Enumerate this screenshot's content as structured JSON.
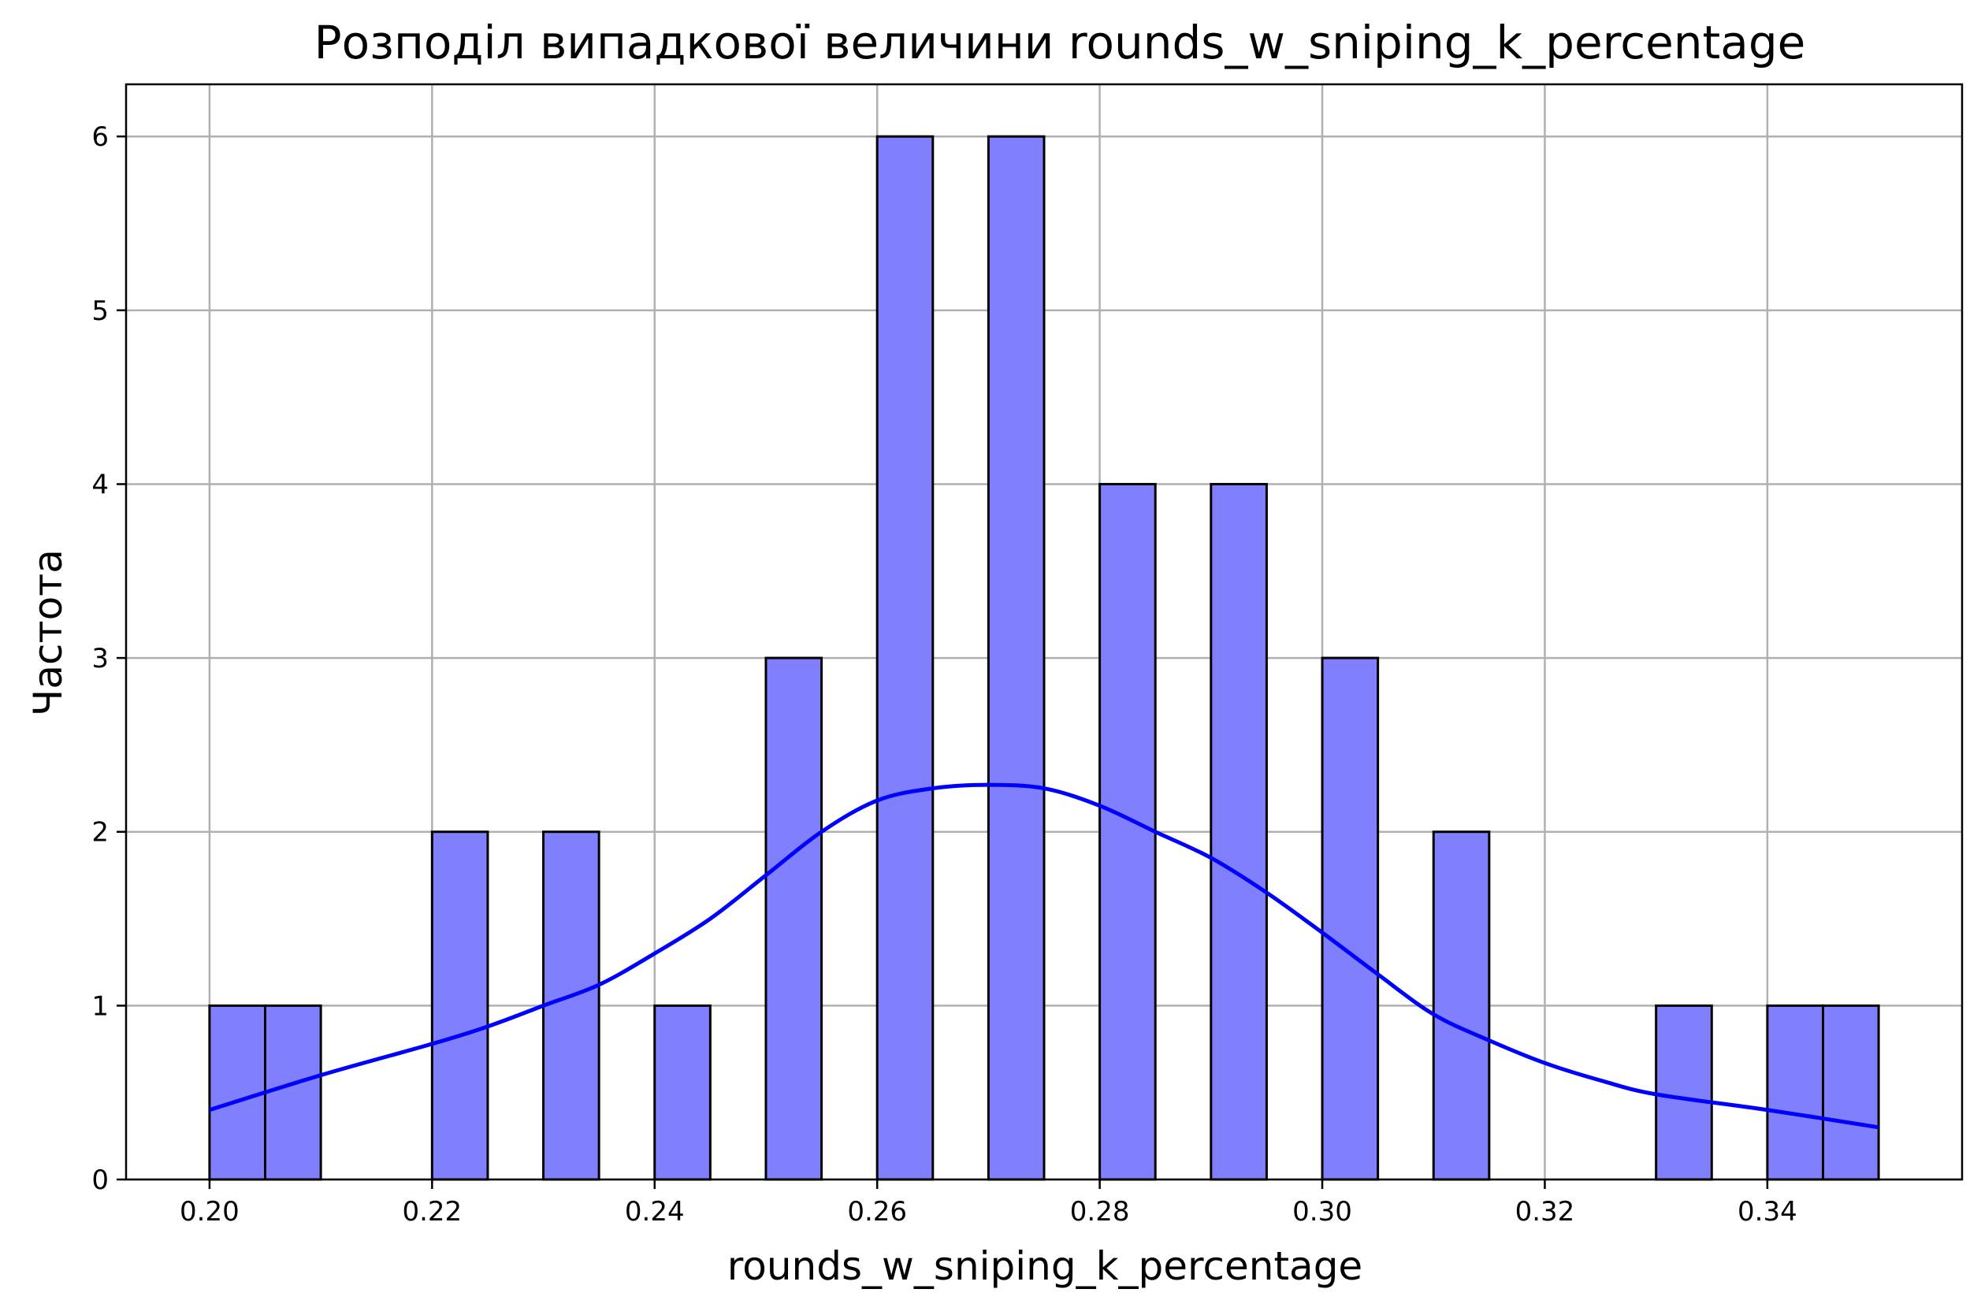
{
  "chart_data": {
    "type": "bar",
    "title": "Розподіл випадкової величини rounds_w_sniping_k_percentage",
    "xlabel": "rounds_w_sniping_k_percentage",
    "ylabel": "Частота",
    "xlim": [
      0.1925,
      0.3575
    ],
    "ylim": [
      0,
      6.3
    ],
    "xticks": [
      "0.20",
      "0.22",
      "0.24",
      "0.26",
      "0.28",
      "0.30",
      "0.32",
      "0.34"
    ],
    "yticks": [
      "0",
      "1",
      "2",
      "3",
      "4",
      "5",
      "6"
    ],
    "grid": true,
    "bin_width": 0.005,
    "bins": [
      {
        "x": 0.2,
        "value": 1
      },
      {
        "x": 0.205,
        "value": 1
      },
      {
        "x": 0.22,
        "value": 2
      },
      {
        "x": 0.23,
        "value": 2
      },
      {
        "x": 0.24,
        "value": 1
      },
      {
        "x": 0.25,
        "value": 3
      },
      {
        "x": 0.26,
        "value": 6
      },
      {
        "x": 0.27,
        "value": 6
      },
      {
        "x": 0.28,
        "value": 4
      },
      {
        "x": 0.29,
        "value": 4
      },
      {
        "x": 0.3,
        "value": 3
      },
      {
        "x": 0.31,
        "value": 2
      },
      {
        "x": 0.33,
        "value": 1
      },
      {
        "x": 0.34,
        "value": 1
      },
      {
        "x": 0.345,
        "value": 1
      }
    ],
    "kde": {
      "x": [
        0.2,
        0.21,
        0.22,
        0.225,
        0.23,
        0.235,
        0.24,
        0.245,
        0.25,
        0.255,
        0.26,
        0.265,
        0.27,
        0.275,
        0.28,
        0.285,
        0.29,
        0.295,
        0.3,
        0.305,
        0.31,
        0.315,
        0.32,
        0.325,
        0.33,
        0.34,
        0.35
      ],
      "y": [
        0.4,
        0.6,
        0.78,
        0.88,
        1.0,
        1.12,
        1.3,
        1.5,
        1.75,
        2.0,
        2.18,
        2.25,
        2.27,
        2.25,
        2.15,
        2.0,
        1.85,
        1.65,
        1.42,
        1.18,
        0.95,
        0.8,
        0.67,
        0.57,
        0.49,
        0.4,
        0.3
      ]
    },
    "colors": {
      "bar_fill": "#8080ff",
      "bar_edge": "#000000",
      "kde": "#0000ff",
      "grid": "#b0b0b0"
    }
  }
}
